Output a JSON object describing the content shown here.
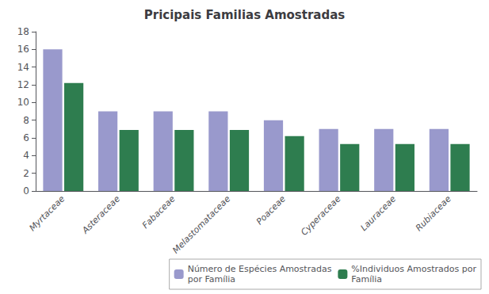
{
  "chart_data": {
    "type": "bar",
    "title": "Pricipais Familias Amostradas",
    "categories": [
      "Myrtaceae",
      "Asteraceae",
      "Fabaceae",
      "Melastomataceae",
      "Poaceae",
      "Cyperaceae",
      "Lauraceae",
      "Rubiaceae"
    ],
    "series": [
      {
        "name": "Número de Espécies Amostradas\npor Família",
        "color": "#9999cc",
        "values": [
          16,
          9,
          9,
          9,
          8,
          7,
          7,
          7
        ]
      },
      {
        "name": "%Individuos Amostrados por\nFamília",
        "color": "#2e7d4f",
        "values": [
          12.2,
          6.9,
          6.9,
          6.9,
          6.2,
          5.3,
          5.3,
          5.3
        ]
      }
    ],
    "ylim": [
      0,
      18
    ],
    "yticks": [
      0,
      2,
      4,
      6,
      8,
      10,
      12,
      14,
      16,
      18
    ],
    "grid": false,
    "legend": "lower right"
  }
}
